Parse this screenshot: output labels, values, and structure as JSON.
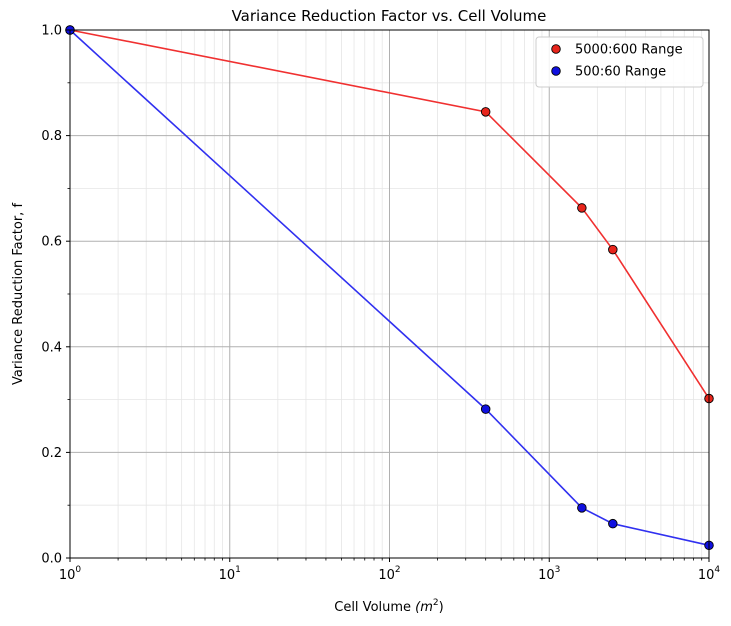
{
  "chart_data": {
    "type": "line",
    "title": "Variance Reduction Factor vs. Cell Volume",
    "xlabel": "Cell Volume",
    "xlabel_unit": "(m",
    "xlabel_unit_exp": "2",
    "xlabel_unit_close": ")",
    "ylabel": "Variance Reduction Factor, f",
    "xscale": "log",
    "xlim": [
      1,
      10000
    ],
    "ylim": [
      0,
      1.0
    ],
    "x_ticks": [
      {
        "value": 1,
        "base": "10",
        "exp": "0"
      },
      {
        "value": 10,
        "base": "10",
        "exp": "1"
      },
      {
        "value": 100,
        "base": "10",
        "exp": "2"
      },
      {
        "value": 1000,
        "base": "10",
        "exp": "3"
      },
      {
        "value": 10000,
        "base": "10",
        "exp": "4"
      }
    ],
    "y_ticks": [
      {
        "value": 0.0,
        "label": "0.0"
      },
      {
        "value": 0.2,
        "label": "0.2"
      },
      {
        "value": 0.4,
        "label": "0.4"
      },
      {
        "value": 0.6,
        "label": "0.6"
      },
      {
        "value": 0.8,
        "label": "0.8"
      },
      {
        "value": 1.0,
        "label": "1.0"
      }
    ],
    "grid": true,
    "legend_position": "top-right",
    "series": [
      {
        "name": "5000:600 Range",
        "color": "#e8251c",
        "line_color": "#f03030",
        "points": [
          {
            "x": 1,
            "y": 1.0
          },
          {
            "x": 400,
            "y": 0.845
          },
          {
            "x": 1600,
            "y": 0.663
          },
          {
            "x": 2500,
            "y": 0.584
          },
          {
            "x": 10000,
            "y": 0.302
          }
        ]
      },
      {
        "name": "500:60 Range",
        "color": "#1010e0",
        "line_color": "#3030f0",
        "points": [
          {
            "x": 1,
            "y": 1.0
          },
          {
            "x": 400,
            "y": 0.282
          },
          {
            "x": 1600,
            "y": 0.095
          },
          {
            "x": 2500,
            "y": 0.065
          },
          {
            "x": 10000,
            "y": 0.024
          }
        ]
      }
    ]
  }
}
